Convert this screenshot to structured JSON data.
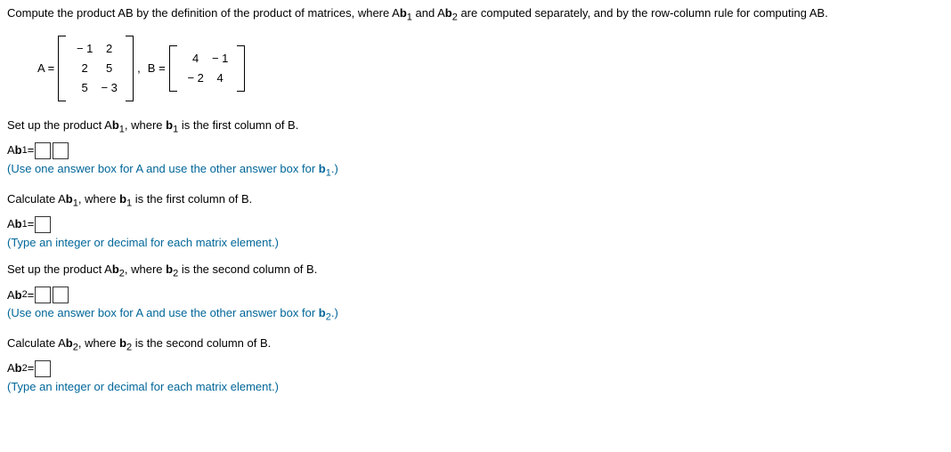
{
  "question": {
    "prefix": "Compute the product AB by the definition of the product of matrices, where A",
    "b1": "b",
    "sub1": "1",
    "mid1": " and A",
    "b2": "b",
    "sub2": "2",
    "suffix": " are computed separately, and by the row-column rule for computing AB."
  },
  "matrices": {
    "A_label": "A =",
    "A": [
      [
        "− 1",
        "2"
      ],
      [
        "2",
        "5"
      ],
      [
        "5",
        "− 3"
      ]
    ],
    "comma": ", ",
    "B_label": "B =",
    "B": [
      [
        "4",
        "− 1"
      ],
      [
        "− 2",
        "4"
      ]
    ]
  },
  "steps": {
    "s1": {
      "pre": "Set up the product A",
      "b": "b",
      "sub": "1",
      "mid": ", where ",
      "bb": "b",
      "bsub": "1",
      "post": " is the first column of B."
    },
    "a1": {
      "lhs_pre": "A",
      "lhs_b": "b",
      "lhs_sub": "1",
      "eq": " = "
    },
    "h1": {
      "pre": "(Use one answer box for A and use the other answer box for ",
      "b": "b",
      "sub": "1",
      "post": ".)"
    },
    "s2": {
      "pre": "Calculate A",
      "b": "b",
      "sub": "1",
      "mid": ", where ",
      "bb": "b",
      "bsub": "1",
      "post": " is the first column of B."
    },
    "a2": {
      "lhs_pre": "A",
      "lhs_b": "b",
      "lhs_sub": "1",
      "eq": " = "
    },
    "h2": "(Type an integer or decimal for each matrix element.)",
    "s3": {
      "pre": "Set up the product A",
      "b": "b",
      "sub": "2",
      "mid": ", where ",
      "bb": "b",
      "bsub": "2",
      "post": " is the second column of B."
    },
    "a3": {
      "lhs_pre": "A",
      "lhs_b": "b",
      "lhs_sub": "2",
      "eq": " = "
    },
    "h3": {
      "pre": "(Use one answer box for A and use the other answer box for ",
      "b": "b",
      "sub": "2",
      "post": ".)"
    },
    "s4": {
      "pre": "Calculate A",
      "b": "b",
      "sub": "2",
      "mid": ", where ",
      "bb": "b",
      "bsub": "2",
      "post": " is the second column of B."
    },
    "a4": {
      "lhs_pre": "A",
      "lhs_b": "b",
      "lhs_sub": "2",
      "eq": " = "
    },
    "h4": "(Type an integer or decimal for each matrix element.)"
  }
}
